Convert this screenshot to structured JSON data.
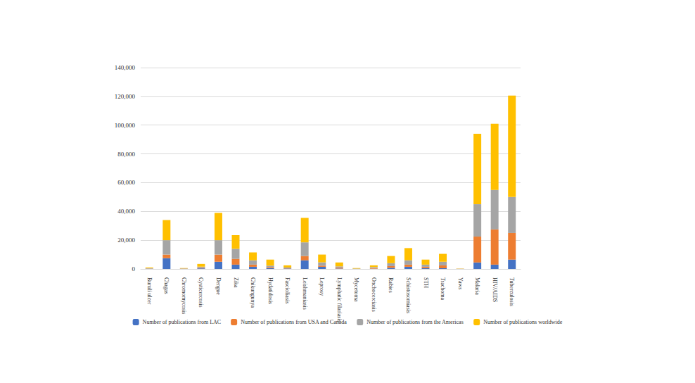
{
  "chart_data": {
    "type": "bar",
    "stacked": true,
    "grid": true,
    "legend": "bottom",
    "categories": [
      "Buruli ulcer",
      "Chagas",
      "Chromomycosis",
      "Cysticercosis",
      "Dengue",
      "Zika",
      "Chikungunya",
      "Hydatidosis",
      "Fascioliasis",
      "Leishmaniasis",
      "Leprosy",
      "Lymphatic filariasis",
      "Mycetoma",
      "Onchocerciasis",
      "Rabies",
      "Schistosomiasis",
      "STH",
      "Trachoma",
      "Yaws",
      "Malaria",
      "HIV/AIDS",
      "Tuberculosis"
    ],
    "series": [
      {
        "name": "Number of publications from LAC",
        "color": "#4472c4",
        "values": [
          100,
          7500,
          150,
          400,
          5000,
          3000,
          1500,
          500,
          300,
          6000,
          1500,
          300,
          100,
          150,
          800,
          1500,
          600,
          500,
          30,
          4500,
          3000,
          6500
        ]
      },
      {
        "name": "Number of publications from USA and Canada",
        "color": "#ed7d31",
        "values": [
          150,
          2500,
          50,
          400,
          5000,
          4000,
          1500,
          600,
          200,
          3000,
          800,
          600,
          50,
          500,
          1200,
          1500,
          900,
          2000,
          50,
          18000,
          24500,
          18500
        ]
      },
      {
        "name": "Number of publications from the Americas",
        "color": "#a5a5a5",
        "values": [
          250,
          10000,
          200,
          800,
          10000,
          7000,
          3000,
          1200,
          500,
          9500,
          2300,
          900,
          150,
          650,
          2000,
          3000,
          1500,
          2500,
          80,
          22500,
          27500,
          25000
        ]
      },
      {
        "name": "Number of publications worldwide",
        "color": "#ffc000",
        "values": [
          500,
          14000,
          200,
          1900,
          19000,
          9500,
          5500,
          4200,
          1500,
          17000,
          5400,
          2700,
          300,
          1200,
          5000,
          8500,
          3500,
          5500,
          140,
          49000,
          46000,
          70500
        ]
      }
    ],
    "ylim": [
      0,
      140000
    ],
    "yticks": [
      0,
      20000,
      40000,
      60000,
      80000,
      100000,
      120000,
      140000
    ]
  }
}
